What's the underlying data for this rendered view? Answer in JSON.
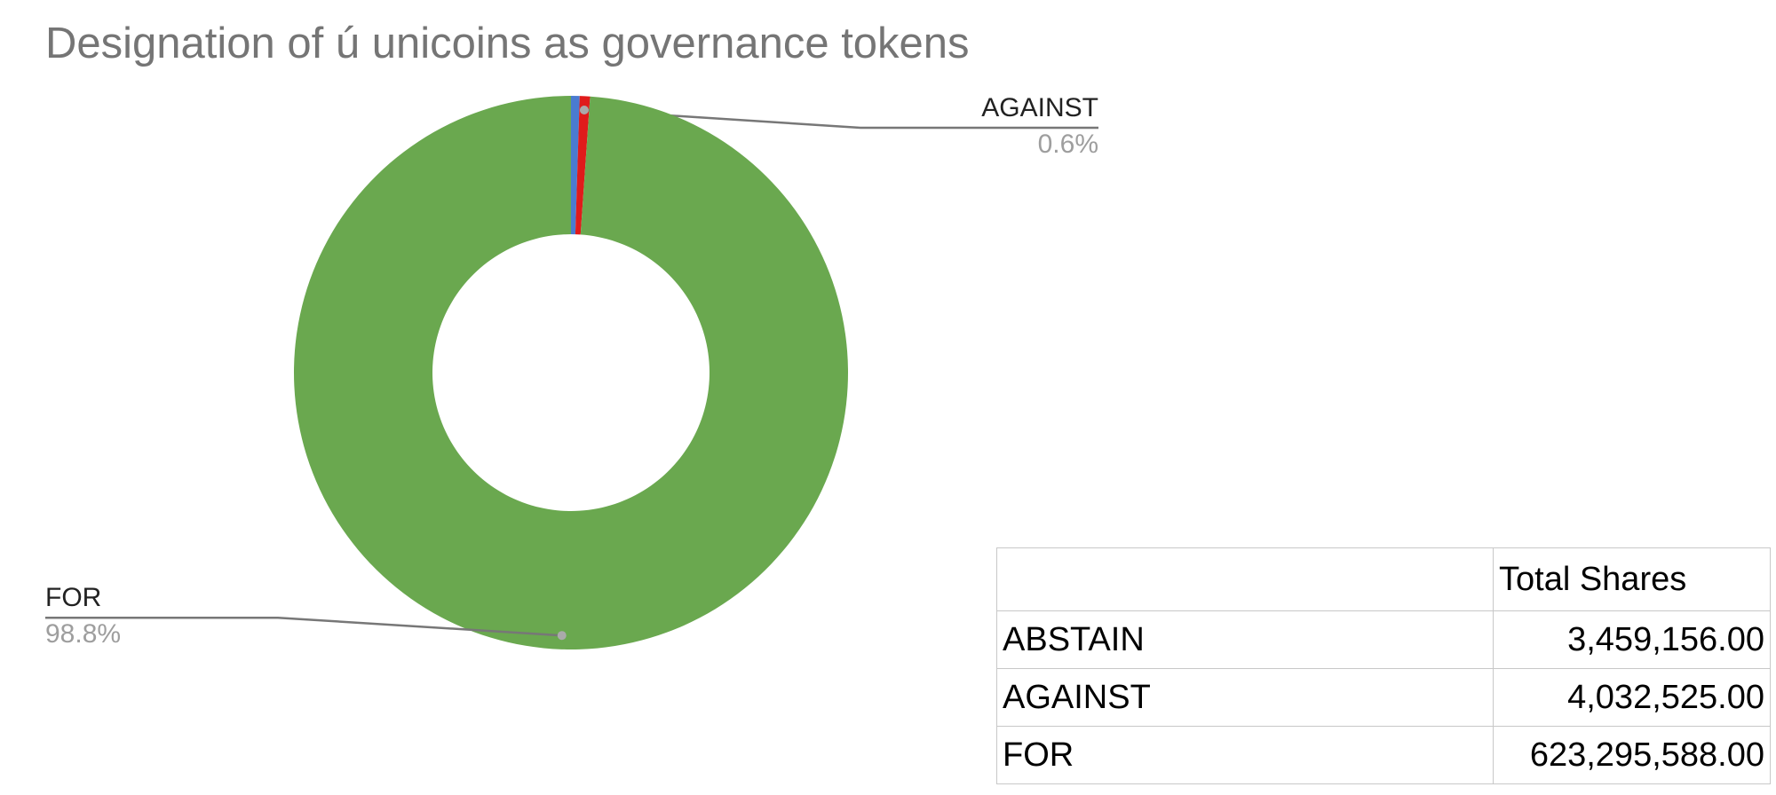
{
  "chart_data": {
    "type": "pie",
    "title": "Designation of ú unicoins as governance tokens",
    "categories": [
      null,
      "AGAINST",
      "FOR"
    ],
    "values": [
      0.5,
      0.6,
      98.8
    ],
    "value_labels": [
      null,
      "0.6%",
      "98.8%"
    ],
    "colors": [
      "#4a7bd0",
      "#e01b1b",
      "#6aa84f"
    ],
    "donut": true
  },
  "table": {
    "columns": [
      "Total Shares"
    ],
    "rows": [
      [
        "ABSTAIN",
        "3,459,156.00"
      ],
      [
        "AGAINST",
        "4,032,525.00"
      ],
      [
        "FOR",
        "623,295,588.00"
      ]
    ]
  }
}
